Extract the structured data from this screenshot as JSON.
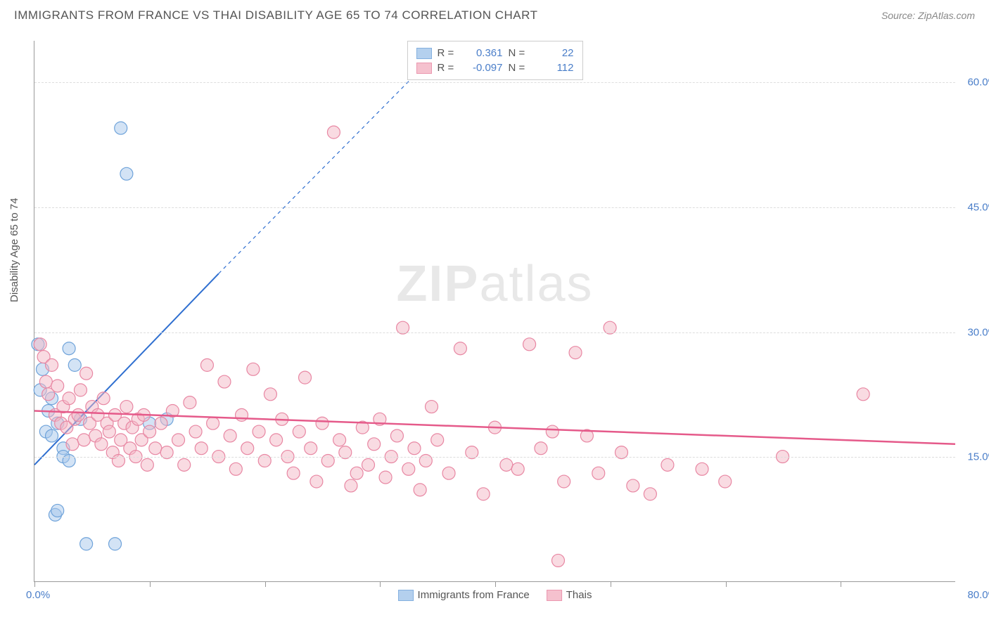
{
  "title": "IMMIGRANTS FROM FRANCE VS THAI DISABILITY AGE 65 TO 74 CORRELATION CHART",
  "source": "Source: ZipAtlas.com",
  "ylabel": "Disability Age 65 to 74",
  "watermark_bold": "ZIP",
  "watermark_rest": "atlas",
  "chart": {
    "type": "scatter",
    "xlim": [
      0,
      80
    ],
    "ylim": [
      0,
      65
    ],
    "x_origin_label": "0.0%",
    "x_max_label": "80.0%",
    "y_ticks": [
      15,
      30,
      45,
      60
    ],
    "y_tick_labels": [
      "15.0%",
      "30.0%",
      "45.0%",
      "60.0%"
    ],
    "x_tick_positions": [
      0,
      10,
      20,
      30,
      40,
      50,
      60,
      70
    ],
    "grid_color": "#dddddd",
    "axis_color": "#999999",
    "background_color": "#ffffff",
    "series": [
      {
        "name": "Immigrants from France",
        "label": "Immigrants from France",
        "R": "0.361",
        "N": "22",
        "fill": "#a8c8ec",
        "fill_opacity": 0.5,
        "stroke": "#6fa3da",
        "marker_radius": 9,
        "trend": {
          "solid": {
            "x1": 0,
            "y1": 14,
            "x2": 16,
            "y2": 37
          },
          "dash": {
            "x1": 16,
            "y1": 37,
            "x2": 36,
            "y2": 65
          },
          "color": "#2f6fd0",
          "width": 2
        },
        "points": [
          [
            0.3,
            28.5
          ],
          [
            0.5,
            23.0
          ],
          [
            0.7,
            25.5
          ],
          [
            1.0,
            18.0
          ],
          [
            1.2,
            20.5
          ],
          [
            1.5,
            22.0
          ],
          [
            1.5,
            17.5
          ],
          [
            2.0,
            19.0
          ],
          [
            2.5,
            16.0
          ],
          [
            1.8,
            8.0
          ],
          [
            2.0,
            8.5
          ],
          [
            2.5,
            15.0
          ],
          [
            3.0,
            28.0
          ],
          [
            3.5,
            26.0
          ],
          [
            4.0,
            19.5
          ],
          [
            4.5,
            4.5
          ],
          [
            7.0,
            4.5
          ],
          [
            7.5,
            54.5
          ],
          [
            8.0,
            49.0
          ],
          [
            10.0,
            19.0
          ],
          [
            11.5,
            19.5
          ],
          [
            3.0,
            14.5
          ]
        ]
      },
      {
        "name": "Thais",
        "label": "Thais",
        "R": "-0.097",
        "N": "112",
        "fill": "#f4b7c6",
        "fill_opacity": 0.5,
        "stroke": "#e887a3",
        "marker_radius": 9,
        "trend": {
          "solid": {
            "x1": 0,
            "y1": 20.5,
            "x2": 80,
            "y2": 16.5
          },
          "color": "#e55a8a",
          "width": 2.5
        },
        "points": [
          [
            0.5,
            28.5
          ],
          [
            0.8,
            27.0
          ],
          [
            1.0,
            24.0
          ],
          [
            1.2,
            22.5
          ],
          [
            1.5,
            26.0
          ],
          [
            1.8,
            20.0
          ],
          [
            2.0,
            23.5
          ],
          [
            2.3,
            19.0
          ],
          [
            2.5,
            21.0
          ],
          [
            2.8,
            18.5
          ],
          [
            3.0,
            22.0
          ],
          [
            3.3,
            16.5
          ],
          [
            3.5,
            19.5
          ],
          [
            3.8,
            20.0
          ],
          [
            4.0,
            23.0
          ],
          [
            4.3,
            17.0
          ],
          [
            4.5,
            25.0
          ],
          [
            4.8,
            19.0
          ],
          [
            5.0,
            21.0
          ],
          [
            5.3,
            17.5
          ],
          [
            5.5,
            20.0
          ],
          [
            5.8,
            16.5
          ],
          [
            6.0,
            22.0
          ],
          [
            6.3,
            19.0
          ],
          [
            6.5,
            18.0
          ],
          [
            6.8,
            15.5
          ],
          [
            7.0,
            20.0
          ],
          [
            7.3,
            14.5
          ],
          [
            7.5,
            17.0
          ],
          [
            7.8,
            19.0
          ],
          [
            8.0,
            21.0
          ],
          [
            8.3,
            16.0
          ],
          [
            8.5,
            18.5
          ],
          [
            8.8,
            15.0
          ],
          [
            9.0,
            19.5
          ],
          [
            9.3,
            17.0
          ],
          [
            9.5,
            20.0
          ],
          [
            9.8,
            14.0
          ],
          [
            10.0,
            18.0
          ],
          [
            10.5,
            16.0
          ],
          [
            11.0,
            19.0
          ],
          [
            11.5,
            15.5
          ],
          [
            12.0,
            20.5
          ],
          [
            12.5,
            17.0
          ],
          [
            13.0,
            14.0
          ],
          [
            13.5,
            21.5
          ],
          [
            14.0,
            18.0
          ],
          [
            14.5,
            16.0
          ],
          [
            15.0,
            26.0
          ],
          [
            15.5,
            19.0
          ],
          [
            16.0,
            15.0
          ],
          [
            16.5,
            24.0
          ],
          [
            17.0,
            17.5
          ],
          [
            17.5,
            13.5
          ],
          [
            18.0,
            20.0
          ],
          [
            18.5,
            16.0
          ],
          [
            19.0,
            25.5
          ],
          [
            19.5,
            18.0
          ],
          [
            20.0,
            14.5
          ],
          [
            20.5,
            22.5
          ],
          [
            21.0,
            17.0
          ],
          [
            21.5,
            19.5
          ],
          [
            22.0,
            15.0
          ],
          [
            22.5,
            13.0
          ],
          [
            23.0,
            18.0
          ],
          [
            23.5,
            24.5
          ],
          [
            24.0,
            16.0
          ],
          [
            24.5,
            12.0
          ],
          [
            25.0,
            19.0
          ],
          [
            25.5,
            14.5
          ],
          [
            26.0,
            54.0
          ],
          [
            26.5,
            17.0
          ],
          [
            27.0,
            15.5
          ],
          [
            27.5,
            11.5
          ],
          [
            28.0,
            13.0
          ],
          [
            28.5,
            18.5
          ],
          [
            29.0,
            14.0
          ],
          [
            29.5,
            16.5
          ],
          [
            30.0,
            19.5
          ],
          [
            30.5,
            12.5
          ],
          [
            31.0,
            15.0
          ],
          [
            31.5,
            17.5
          ],
          [
            32.0,
            30.5
          ],
          [
            32.5,
            13.5
          ],
          [
            33.0,
            16.0
          ],
          [
            33.5,
            11.0
          ],
          [
            34.0,
            14.5
          ],
          [
            34.5,
            21.0
          ],
          [
            35.0,
            17.0
          ],
          [
            36.0,
            13.0
          ],
          [
            37.0,
            28.0
          ],
          [
            38.0,
            15.5
          ],
          [
            39.0,
            10.5
          ],
          [
            40.0,
            18.5
          ],
          [
            41.0,
            14.0
          ],
          [
            42.0,
            13.5
          ],
          [
            43.0,
            28.5
          ],
          [
            44.0,
            16.0
          ],
          [
            45.0,
            18.0
          ],
          [
            45.5,
            2.5
          ],
          [
            46.0,
            12.0
          ],
          [
            47.0,
            27.5
          ],
          [
            48.0,
            17.5
          ],
          [
            49.0,
            13.0
          ],
          [
            50.0,
            30.5
          ],
          [
            51.0,
            15.5
          ],
          [
            52.0,
            11.5
          ],
          [
            53.5,
            10.5
          ],
          [
            55.0,
            14.0
          ],
          [
            58.0,
            13.5
          ],
          [
            60.0,
            12.0
          ],
          [
            65.0,
            15.0
          ],
          [
            72.0,
            22.5
          ]
        ]
      }
    ]
  },
  "legend_top": {
    "R_label": "R =",
    "N_label": "N ="
  },
  "legend_bottom": {},
  "tick_label_color": "#4a7ec9",
  "title_color": "#555555",
  "title_fontsize": 17
}
